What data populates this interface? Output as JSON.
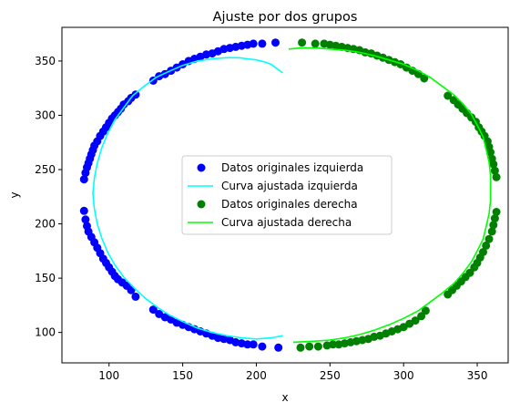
{
  "chart_data": {
    "type": "scatter",
    "title": "Ajuste por dos grupos",
    "xlabel": "x",
    "ylabel": "y",
    "xlim": [
      68,
      371
    ],
    "ylim": [
      72,
      381
    ],
    "xticks": [
      100,
      150,
      200,
      250,
      300,
      350
    ],
    "yticks": [
      100,
      150,
      200,
      250,
      300,
      350
    ],
    "grid": false,
    "legend_position": "center",
    "colors": {
      "scatter_left": "#0000ff",
      "curve_left": "#00ffff",
      "scatter_right": "#008000",
      "curve_right": "#00ff00"
    },
    "legend": [
      {
        "label": "Datos originales izquierda",
        "kind": "marker",
        "color": "#0000ff"
      },
      {
        "label": "Curva ajustada izquierda",
        "kind": "line",
        "color": "#00ffff"
      },
      {
        "label": "Datos originales derecha",
        "kind": "marker",
        "color": "#008000"
      },
      {
        "label": "Curva ajustada derecha",
        "kind": "line",
        "color": "#00ff00"
      }
    ],
    "series": [
      {
        "name": "Datos originales izquierda",
        "kind": "scatter",
        "points": [
          [
            83,
            241
          ],
          [
            84,
            247
          ],
          [
            85,
            252
          ],
          [
            86,
            256
          ],
          [
            87,
            260
          ],
          [
            88,
            264
          ],
          [
            89,
            268
          ],
          [
            90,
            272
          ],
          [
            92,
            276
          ],
          [
            94,
            281
          ],
          [
            96,
            285
          ],
          [
            98,
            289
          ],
          [
            100,
            293
          ],
          [
            102,
            297
          ],
          [
            104,
            300
          ],
          [
            106,
            303
          ],
          [
            108,
            306
          ],
          [
            110,
            310
          ],
          [
            113,
            313
          ],
          [
            115,
            316
          ],
          [
            118,
            319
          ],
          [
            130,
            332
          ],
          [
            134,
            336
          ],
          [
            138,
            338
          ],
          [
            142,
            341
          ],
          [
            146,
            344
          ],
          [
            150,
            347
          ],
          [
            154,
            350
          ],
          [
            158,
            352
          ],
          [
            162,
            354
          ],
          [
            166,
            356
          ],
          [
            170,
            357
          ],
          [
            174,
            359
          ],
          [
            178,
            361
          ],
          [
            182,
            362
          ],
          [
            186,
            363
          ],
          [
            190,
            364
          ],
          [
            194,
            365
          ],
          [
            198,
            366
          ],
          [
            204,
            366
          ],
          [
            213,
            367
          ],
          [
            83,
            212
          ],
          [
            84,
            204
          ],
          [
            85,
            198
          ],
          [
            86,
            193
          ],
          [
            88,
            188
          ],
          [
            90,
            183
          ],
          [
            92,
            178
          ],
          [
            94,
            173
          ],
          [
            96,
            168
          ],
          [
            98,
            164
          ],
          [
            100,
            160
          ],
          [
            102,
            156
          ],
          [
            104,
            152
          ],
          [
            106,
            149
          ],
          [
            109,
            146
          ],
          [
            112,
            143
          ],
          [
            115,
            139
          ],
          [
            118,
            133
          ],
          [
            130,
            121
          ],
          [
            134,
            117
          ],
          [
            138,
            114
          ],
          [
            142,
            112
          ],
          [
            146,
            109
          ],
          [
            150,
            107
          ],
          [
            154,
            105
          ],
          [
            158,
            103
          ],
          [
            162,
            101
          ],
          [
            166,
            99
          ],
          [
            170,
            97
          ],
          [
            174,
            95
          ],
          [
            178,
            94
          ],
          [
            182,
            93
          ],
          [
            186,
            91
          ],
          [
            190,
            90
          ],
          [
            194,
            89
          ],
          [
            198,
            89
          ],
          [
            204,
            87
          ],
          [
            215,
            86
          ]
        ]
      },
      {
        "name": "Curva ajustada izquierda",
        "kind": "curve",
        "points": [
          [
            218,
            339
          ],
          [
            214,
            343
          ],
          [
            210,
            347
          ],
          [
            206,
            349
          ],
          [
            200,
            351
          ],
          [
            194,
            352
          ],
          [
            188,
            353
          ],
          [
            180,
            353
          ],
          [
            170,
            352
          ],
          [
            160,
            350
          ],
          [
            150,
            346
          ],
          [
            140,
            340
          ],
          [
            132,
            335
          ],
          [
            124,
            327
          ],
          [
            116,
            318
          ],
          [
            110,
            307
          ],
          [
            104,
            296
          ],
          [
            99,
            283
          ],
          [
            95,
            270
          ],
          [
            92,
            256
          ],
          [
            90,
            242
          ],
          [
            89,
            228
          ],
          [
            90,
            214
          ],
          [
            92,
            200
          ],
          [
            95,
            187
          ],
          [
            99,
            174
          ],
          [
            104,
            162
          ],
          [
            110,
            151
          ],
          [
            117,
            141
          ],
          [
            125,
            131
          ],
          [
            133,
            123
          ],
          [
            141,
            116
          ],
          [
            150,
            110
          ],
          [
            160,
            104
          ],
          [
            170,
            100
          ],
          [
            180,
            97
          ],
          [
            190,
            95
          ],
          [
            200,
            94
          ],
          [
            210,
            95
          ],
          [
            218,
            97
          ]
        ]
      },
      {
        "name": "Datos originales derecha",
        "kind": "scatter",
        "points": [
          [
            231,
            367
          ],
          [
            240,
            366
          ],
          [
            246,
            366
          ],
          [
            250,
            365
          ],
          [
            254,
            364
          ],
          [
            258,
            363
          ],
          [
            262,
            362
          ],
          [
            266,
            361
          ],
          [
            270,
            360
          ],
          [
            274,
            358
          ],
          [
            278,
            357
          ],
          [
            282,
            355
          ],
          [
            286,
            353
          ],
          [
            290,
            351
          ],
          [
            294,
            349
          ],
          [
            298,
            347
          ],
          [
            302,
            344
          ],
          [
            306,
            341
          ],
          [
            310,
            338
          ],
          [
            314,
            334
          ],
          [
            330,
            318
          ],
          [
            334,
            314
          ],
          [
            337,
            310
          ],
          [
            340,
            306
          ],
          [
            343,
            302
          ],
          [
            346,
            298
          ],
          [
            349,
            294
          ],
          [
            351,
            289
          ],
          [
            353,
            285
          ],
          [
            355,
            281
          ],
          [
            357,
            276
          ],
          [
            358,
            271
          ],
          [
            359,
            266
          ],
          [
            360,
            260
          ],
          [
            361,
            255
          ],
          [
            362,
            249
          ],
          [
            363,
            243
          ],
          [
            230,
            86
          ],
          [
            236,
            87
          ],
          [
            242,
            87
          ],
          [
            248,
            88
          ],
          [
            252,
            89
          ],
          [
            256,
            89
          ],
          [
            260,
            90
          ],
          [
            264,
            91
          ],
          [
            268,
            92
          ],
          [
            272,
            93
          ],
          [
            276,
            94
          ],
          [
            280,
            96
          ],
          [
            284,
            97
          ],
          [
            288,
            99
          ],
          [
            292,
            101
          ],
          [
            296,
            103
          ],
          [
            300,
            105
          ],
          [
            304,
            108
          ],
          [
            308,
            111
          ],
          [
            312,
            115
          ],
          [
            315,
            120
          ],
          [
            330,
            135
          ],
          [
            333,
            139
          ],
          [
            336,
            143
          ],
          [
            339,
            147
          ],
          [
            342,
            151
          ],
          [
            345,
            155
          ],
          [
            348,
            160
          ],
          [
            350,
            164
          ],
          [
            352,
            169
          ],
          [
            354,
            174
          ],
          [
            356,
            180
          ],
          [
            358,
            186
          ],
          [
            360,
            193
          ],
          [
            361,
            199
          ],
          [
            362,
            205
          ],
          [
            363,
            211
          ]
        ]
      },
      {
        "name": "Curva ajustada derecha",
        "kind": "curve",
        "points": [
          [
            222,
            361
          ],
          [
            230,
            362
          ],
          [
            240,
            362
          ],
          [
            250,
            361
          ],
          [
            260,
            360
          ],
          [
            270,
            358
          ],
          [
            280,
            355
          ],
          [
            290,
            351
          ],
          [
            300,
            347
          ],
          [
            310,
            341
          ],
          [
            318,
            335
          ],
          [
            326,
            327
          ],
          [
            334,
            319
          ],
          [
            340,
            311
          ],
          [
            346,
            301
          ],
          [
            350,
            291
          ],
          [
            354,
            280
          ],
          [
            356,
            269
          ],
          [
            358,
            257
          ],
          [
            359,
            245
          ],
          [
            359,
            233
          ],
          [
            359,
            221
          ],
          [
            358,
            209
          ],
          [
            356,
            197
          ],
          [
            354,
            186
          ],
          [
            350,
            175
          ],
          [
            346,
            165
          ],
          [
            340,
            154
          ],
          [
            334,
            145
          ],
          [
            326,
            136
          ],
          [
            318,
            128
          ],
          [
            310,
            120
          ],
          [
            300,
            113
          ],
          [
            290,
            107
          ],
          [
            280,
            102
          ],
          [
            270,
            98
          ],
          [
            260,
            95
          ],
          [
            250,
            93
          ],
          [
            240,
            92
          ],
          [
            225,
            91
          ]
        ]
      }
    ]
  }
}
